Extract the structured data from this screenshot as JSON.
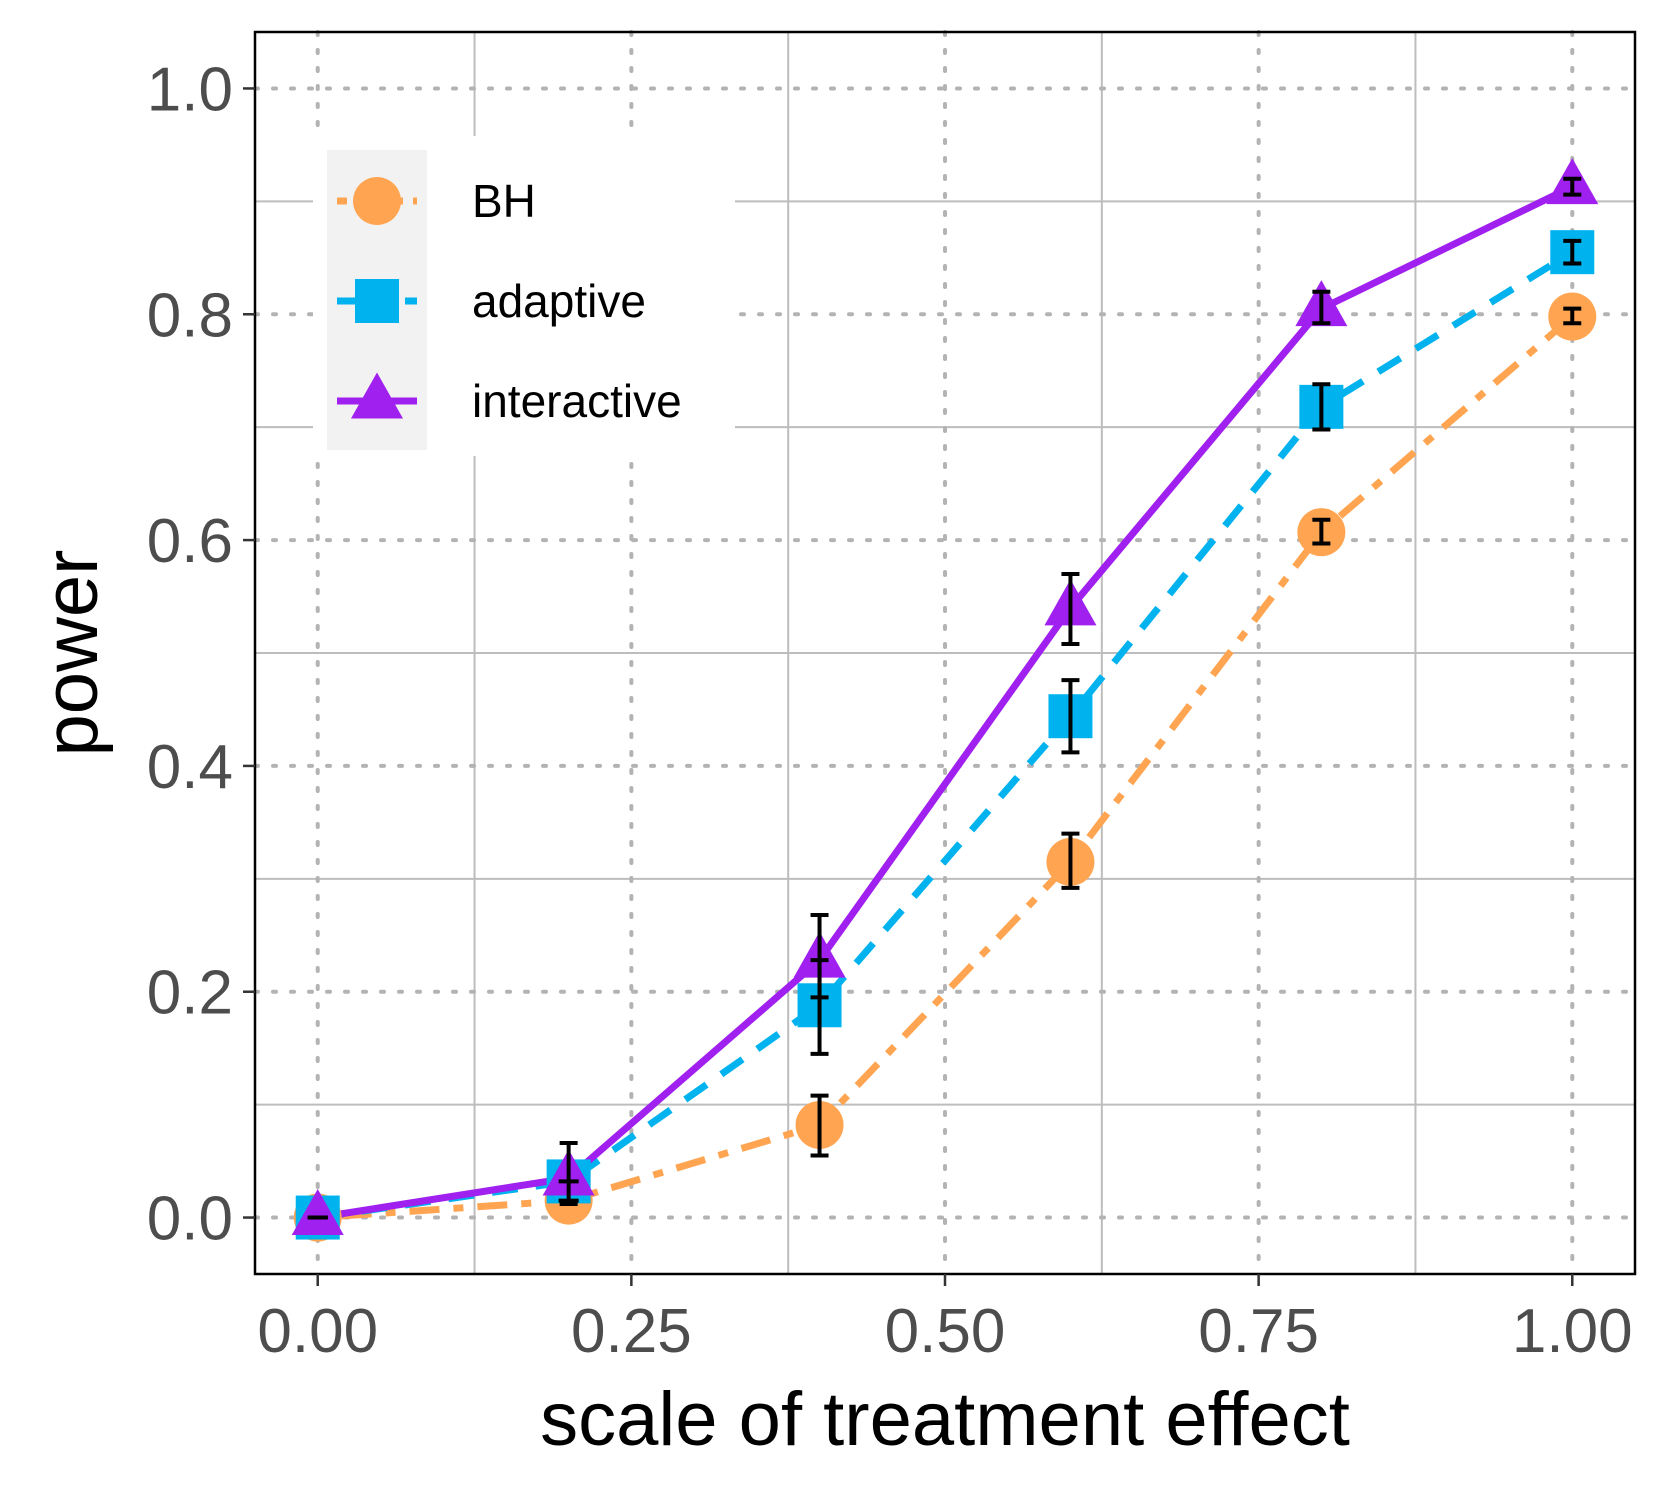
{
  "chart_data": {
    "type": "line",
    "title": "",
    "xlabel": "scale of treatment effect",
    "ylabel": "power",
    "xlim": [
      -0.05,
      1.05
    ],
    "ylim": [
      -0.05,
      1.05
    ],
    "x_ticks": [
      0.0,
      0.25,
      0.5,
      0.75,
      1.0
    ],
    "x_tick_labels": [
      "0.00",
      "0.25",
      "0.50",
      "0.75",
      "1.00"
    ],
    "y_ticks": [
      0.0,
      0.2,
      0.4,
      0.6,
      0.8,
      1.0
    ],
    "y_tick_labels": [
      "0.0",
      "0.2",
      "0.4",
      "0.6",
      "0.8",
      "1.0"
    ],
    "grid": true,
    "legend_position": "top-left",
    "x": [
      0.0,
      0.2,
      0.4,
      0.6,
      0.8,
      1.0
    ],
    "series": [
      {
        "name": "BH",
        "color": "#FFA552",
        "marker": "circle",
        "line_style": "dotdash",
        "values": [
          0.0,
          0.015,
          0.082,
          0.315,
          0.607,
          0.798
        ],
        "err_low": [
          0.0,
          0.015,
          0.055,
          0.292,
          0.597,
          0.792
        ],
        "err_high": [
          0.0,
          0.015,
          0.108,
          0.34,
          0.618,
          0.805
        ]
      },
      {
        "name": "adaptive",
        "color": "#00B2EE",
        "marker": "square",
        "line_style": "dashed",
        "values": [
          0.0,
          0.032,
          0.188,
          0.444,
          0.718,
          0.855
        ],
        "err_low": [
          0.0,
          0.032,
          0.145,
          0.412,
          0.698,
          0.845
        ],
        "err_high": [
          0.0,
          0.032,
          0.228,
          0.476,
          0.738,
          0.865
        ]
      },
      {
        "name": "interactive",
        "color": "#A020F0",
        "marker": "triangle",
        "line_style": "solid",
        "values": [
          0.0,
          0.035,
          0.228,
          0.54,
          0.805,
          0.913
        ],
        "err_low": [
          0.0,
          0.012,
          0.195,
          0.508,
          0.792,
          0.906
        ],
        "err_high": [
          0.0,
          0.066,
          0.268,
          0.57,
          0.82,
          0.92
        ]
      }
    ]
  }
}
